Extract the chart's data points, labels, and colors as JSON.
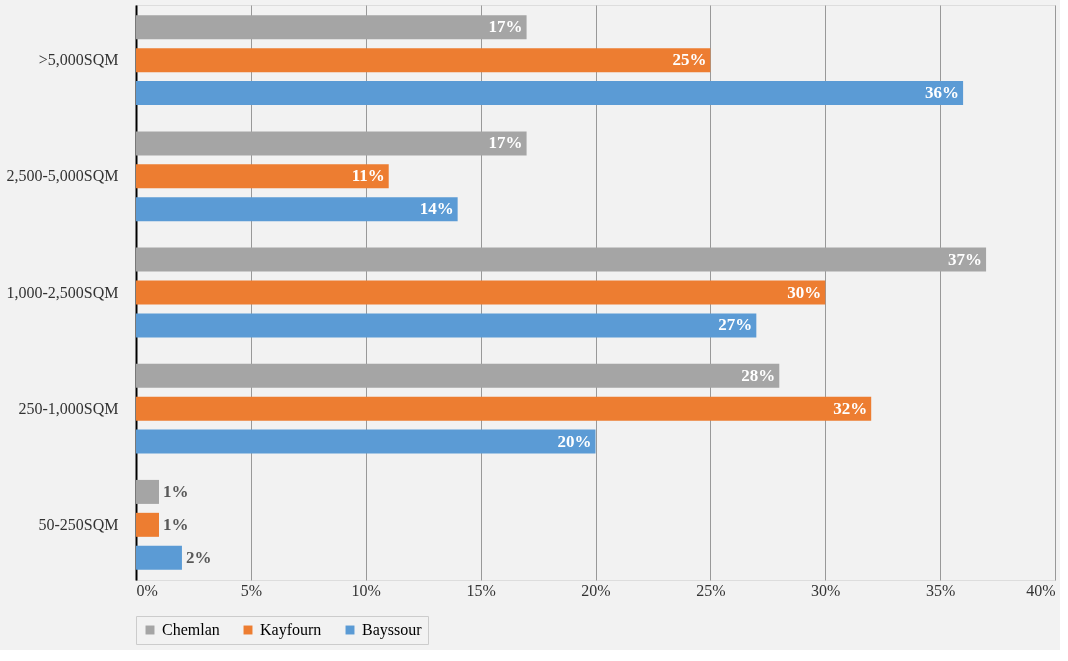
{
  "chart_data": {
    "type": "bar",
    "orientation": "horizontal",
    "categories": [
      ">5,000SQM",
      "2,500-5,000SQM",
      "1,000-2,500SQM",
      "250-1,000SQM",
      "50-250SQM"
    ],
    "series": [
      {
        "name": "Chemlan",
        "color": "#a5a5a5",
        "values": [
          17,
          17,
          37,
          28,
          1
        ],
        "value_labels": [
          "17%",
          "17%",
          "37%",
          "28%",
          "1%"
        ]
      },
      {
        "name": "Kayfourn",
        "color": "#ed7d31",
        "values": [
          25,
          11,
          30,
          32,
          1
        ],
        "value_labels": [
          "25%",
          "11%",
          "30%",
          "32%",
          "1%"
        ]
      },
      {
        "name": "Bayssour",
        "color": "#5b9bd5",
        "values": [
          36,
          14,
          27,
          20,
          2
        ],
        "value_labels": [
          "36%",
          "14%",
          "27%",
          "20%",
          "2%"
        ]
      }
    ],
    "xlim": [
      0,
      40
    ],
    "xticks": [
      {
        "value": 0,
        "label": "0%"
      },
      {
        "value": 5,
        "label": "5%"
      },
      {
        "value": 10,
        "label": "10%"
      },
      {
        "value": 15,
        "label": "15%"
      },
      {
        "value": 20,
        "label": "20%"
      },
      {
        "value": 25,
        "label": "25%"
      },
      {
        "value": 30,
        "label": "30%"
      },
      {
        "value": 35,
        "label": "35%"
      },
      {
        "value": 40,
        "label": "40%"
      }
    ],
    "grid": "x",
    "legend": "bottom"
  }
}
